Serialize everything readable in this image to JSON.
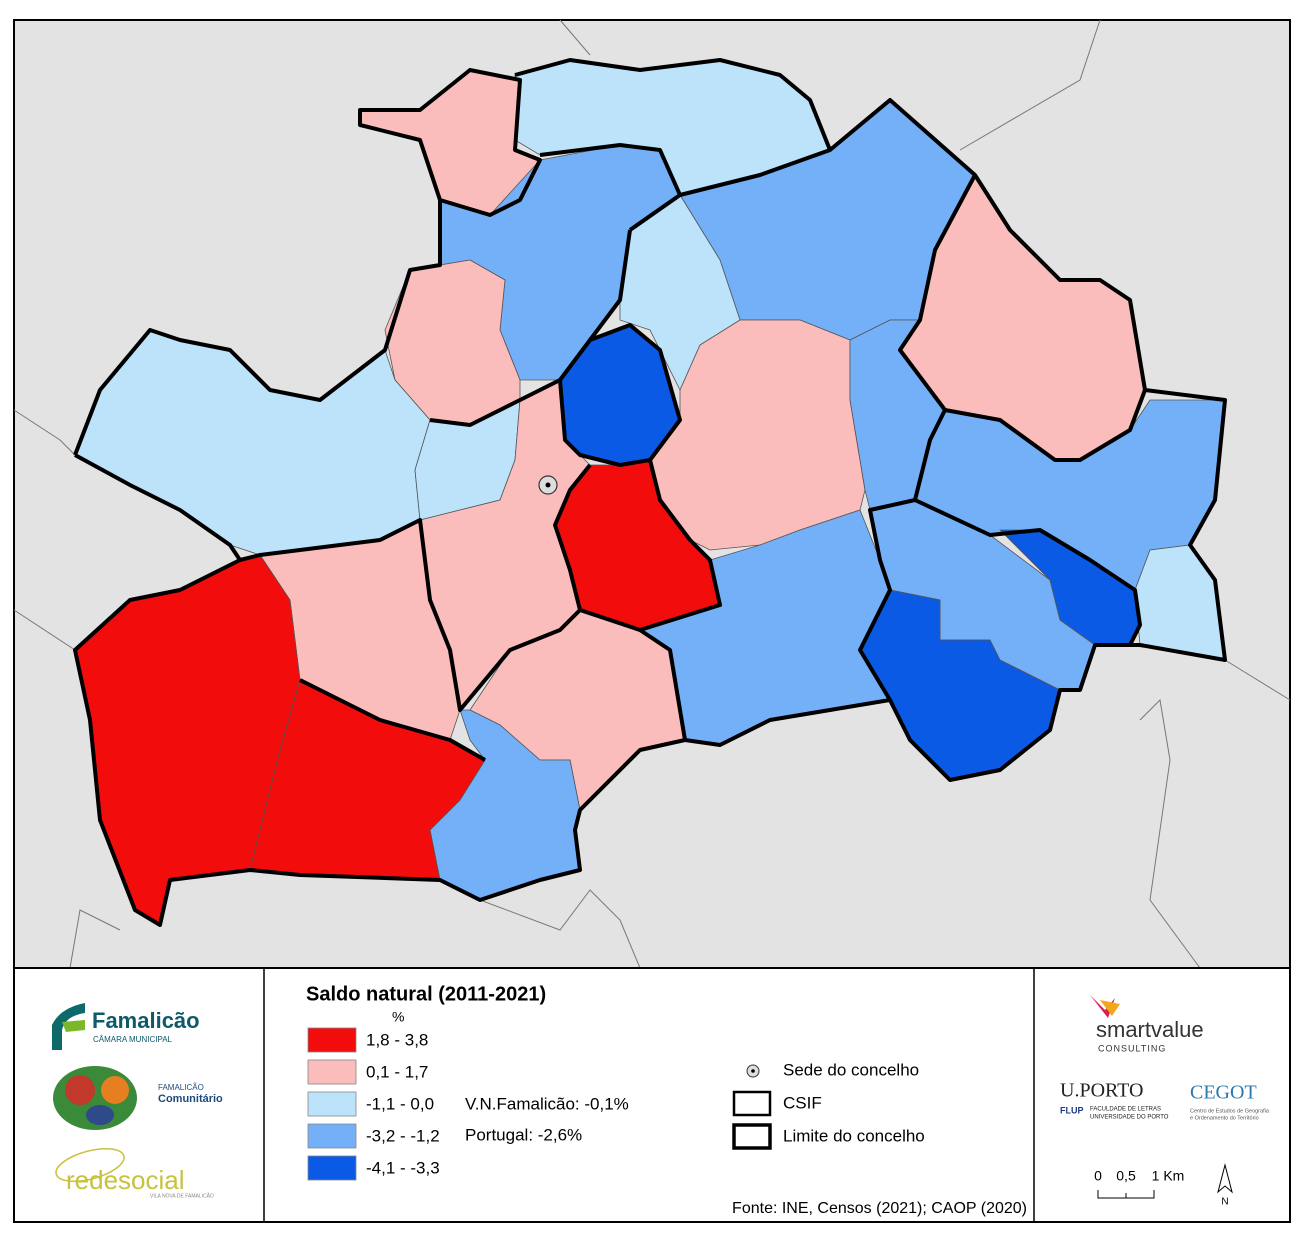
{
  "legend": {
    "title": "Saldo natural (2011-2021)",
    "unit": "%",
    "classes": [
      {
        "label": "1,8 - 3,8",
        "color": "#f20c0c"
      },
      {
        "label": "0,1 - 1,7",
        "color": "#fbbcbc"
      },
      {
        "label": "-1,1 - 0,0",
        "color": "#bde3fb"
      },
      {
        "label": "-3,2 - -1,2",
        "color": "#73b0f8"
      },
      {
        "label": "-4,1 - -3,3",
        "color": "#0a5ae6"
      }
    ],
    "notes": [
      "V.N.Famalicão: -0,1%",
      "Portugal: -2,6%"
    ],
    "symbols": [
      "Sede do concelho",
      "CSIF",
      "Limite do concelho"
    ]
  },
  "source": "Fonte: INE, Censos (2021); CAOP (2020)",
  "logos": {
    "famalicao": "Famalicão",
    "camara": "CÂMARA MUNICIPAL",
    "comunitario_top": "FAMALICÃO",
    "comunitario": "Comunitário",
    "redesocial": "redesocial",
    "redesocial_sub": "VILA NOVA DE FAMALICÃO",
    "smartvalue": "smartvalue",
    "consulting": "CONSULTING",
    "uporto": "U.PORTO",
    "flup": "FLUP",
    "flup_1": "FACULDADE DE LETRAS",
    "flup_2": "UNIVERSIDADE DO PORTO",
    "cegot": "CEGOT",
    "cegot_1": "Centro de Estudos de Geografia",
    "cegot_2": "e Ordenamento do Território"
  },
  "scale": [
    "0",
    "0,5",
    "1 Km"
  ],
  "north": "N"
}
